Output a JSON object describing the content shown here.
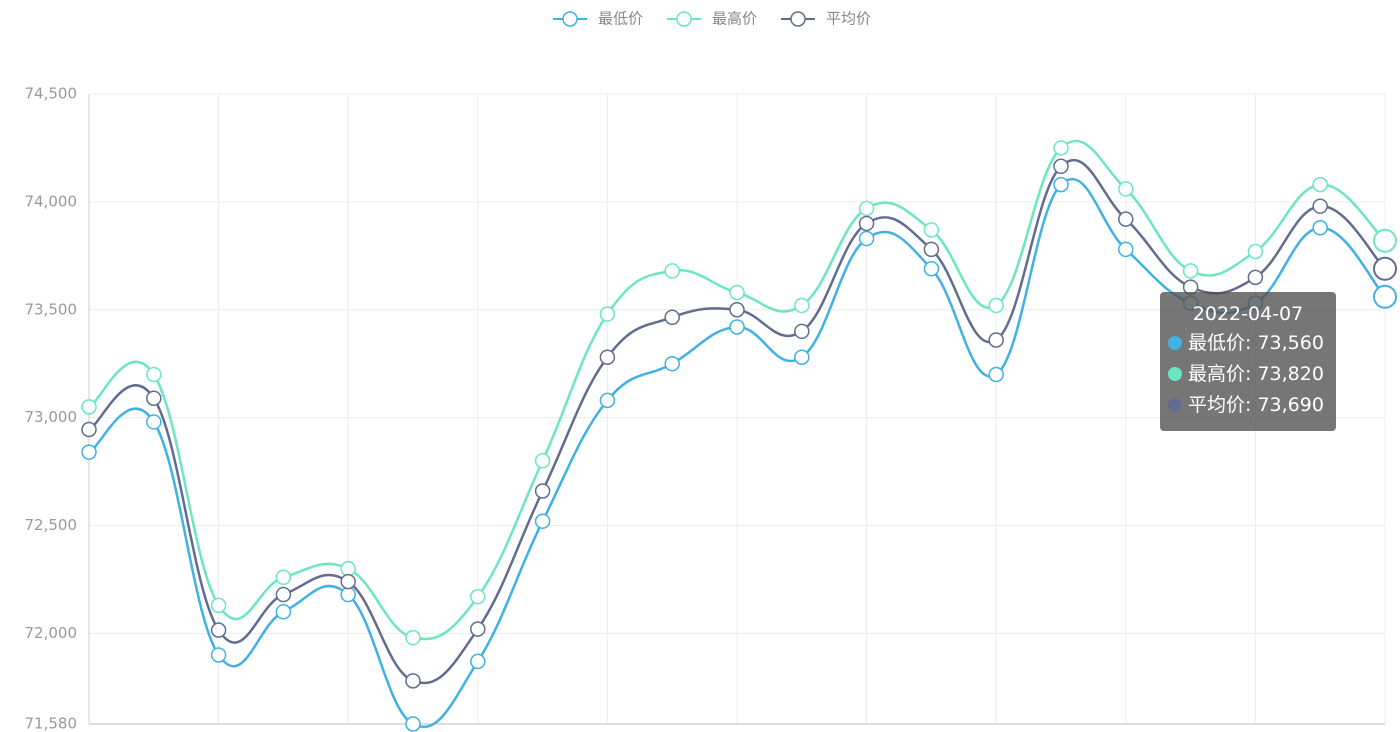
{
  "chart_data": {
    "type": "line",
    "smooth": true,
    "categories": [
      null,
      null,
      null,
      null,
      null,
      null,
      null,
      null,
      null,
      null,
      null,
      null,
      null,
      null,
      null,
      null,
      null,
      null,
      null,
      null,
      "2022-04-07"
    ],
    "series": [
      {
        "name": "最低价",
        "color": "#3fb1e3",
        "values": [
          72840,
          72980,
          71900,
          72100,
          72180,
          71580,
          71870,
          72520,
          73080,
          73250,
          73420,
          73280,
          73830,
          73690,
          73200,
          74080,
          73780,
          73530,
          73530,
          73880,
          73560
        ]
      },
      {
        "name": "最高价",
        "color": "#6be6c1",
        "values": [
          73050,
          73200,
          72130,
          72260,
          72300,
          71980,
          72170,
          72800,
          73480,
          73680,
          73580,
          73520,
          73970,
          73870,
          73520,
          74250,
          74060,
          73680,
          73770,
          74080,
          73820
        ]
      },
      {
        "name": "平均价",
        "color": "#626c91",
        "values": [
          72945,
          73090,
          72015,
          72180,
          72240,
          71780,
          72020,
          72660,
          73280,
          73465,
          73500,
          73400,
          73900,
          73780,
          73360,
          74165,
          73920,
          73605,
          73650,
          73980,
          73690
        ]
      }
    ],
    "ylim": [
      71580,
      74500
    ],
    "yticks": [
      {
        "value": 71580,
        "label": "71,580"
      },
      {
        "value": 72000,
        "label": "72,000"
      },
      {
        "value": 72500,
        "label": "72,500"
      },
      {
        "value": 73000,
        "label": "73,000"
      },
      {
        "value": 73500,
        "label": "73,500"
      },
      {
        "value": 74000,
        "label": "74,000"
      },
      {
        "value": 74500,
        "label": "74,500"
      }
    ],
    "grid": true,
    "legend": "top",
    "tooltip": {
      "rows": [
        "最低价: 73,560",
        "最高价: 73,820",
        "平均价: 73,690"
      ]
    }
  }
}
